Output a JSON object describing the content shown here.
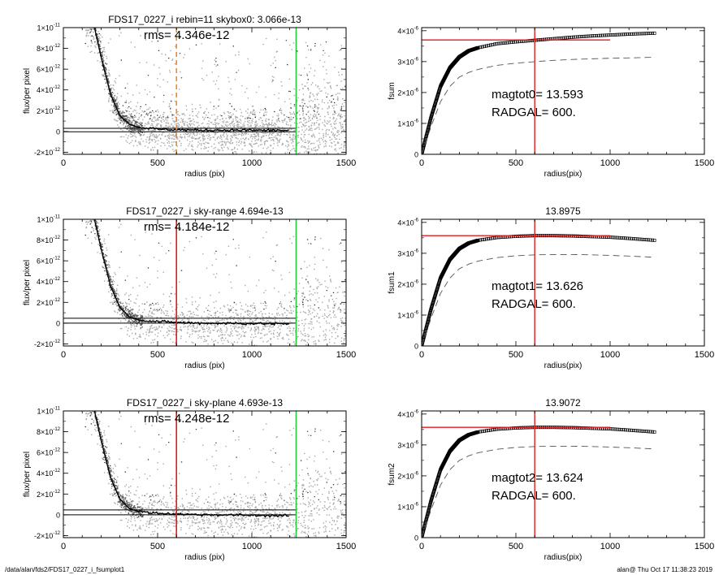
{
  "footer": {
    "left": "/data/alan/fds2/FDS17_0227_i_fsumplot1",
    "right": "alan@  Thu Oct 17 11:38:23 2019"
  },
  "colors": {
    "scatter_grey": "#a9a9a9",
    "red": "#e41a1c",
    "green": "#22c93a",
    "orange": "#f08a24"
  },
  "chart_data": [
    {
      "type": "scatter",
      "title": "FDS17_0227_i rebin=11    skybox0:  3.066e-13",
      "annotation": "rms= 4.346e-12",
      "xlabel": "radius (pix)",
      "ylabel": "flux/per pixel",
      "xlim": [
        0,
        1500
      ],
      "ylim": [
        -2.2e-12,
        1e-11
      ],
      "xticks": [
        "0",
        "500",
        "1000",
        "1500"
      ],
      "yticks": [
        {
          "value": -2e-12,
          "mant": "-2×10",
          "exp": "-12"
        },
        {
          "value": 0,
          "mant": "0",
          "exp": ""
        },
        {
          "value": 2e-12,
          "mant": "2×10",
          "exp": "-12"
        },
        {
          "value": 4e-12,
          "mant": "4×10",
          "exp": "-12"
        },
        {
          "value": 6e-12,
          "mant": "6×10",
          "exp": "-12"
        },
        {
          "value": 8e-12,
          "mant": "8×10",
          "exp": "-12"
        },
        {
          "value": 1e-11,
          "mant": "1×10",
          "exp": "-11"
        }
      ],
      "hlines": [
        3.066e-13,
        -2.5e-14
      ],
      "vlines": [
        {
          "x": 600,
          "color": "orange",
          "dashed": true
        },
        {
          "x": 1235,
          "color": "green",
          "dashed": false
        }
      ],
      "profile": [
        [
          165,
          1e-11
        ],
        [
          200,
          7.2e-12
        ],
        [
          250,
          3.6e-12
        ],
        [
          300,
          1.5e-12
        ],
        [
          350,
          7e-13
        ],
        [
          400,
          4e-13
        ],
        [
          500,
          2.2e-13
        ],
        [
          700,
          1.2e-13
        ],
        [
          900,
          1.3e-13
        ],
        [
          1200,
          1e-13
        ]
      ]
    },
    {
      "type": "line",
      "title": "",
      "annotation_lines": [
        "magtot0=  13.593",
        "RADGAL=    600."
      ],
      "xlabel": "radius(pix)",
      "ylabel": "fsum",
      "xlim": [
        0,
        1500
      ],
      "ylim": [
        0,
        4.1e-06
      ],
      "xticks": [
        "0",
        "500",
        "1000",
        "1500"
      ],
      "yticks": [
        {
          "value": 0,
          "mant": "0",
          "exp": ""
        },
        {
          "value": 1e-06,
          "mant": "1×10",
          "exp": "-6"
        },
        {
          "value": 2e-06,
          "mant": "2×10",
          "exp": "-6"
        },
        {
          "value": 3e-06,
          "mant": "3×10",
          "exp": "-6"
        },
        {
          "value": 4e-06,
          "mant": "4×10",
          "exp": "-6"
        }
      ],
      "series": [
        {
          "style": "open-squares",
          "x": [
            0,
            50,
            100,
            150,
            200,
            250,
            300,
            400,
            500,
            600,
            700,
            800,
            900,
            1000,
            1100,
            1235
          ],
          "y": [
            0,
            1.2e-06,
            2.2e-06,
            2.8e-06,
            3.15e-06,
            3.35e-06,
            3.45e-06,
            3.58e-06,
            3.64e-06,
            3.69e-06,
            3.74e-06,
            3.79e-06,
            3.83e-06,
            3.86e-06,
            3.89e-06,
            3.92e-06
          ]
        },
        {
          "style": "dashed",
          "x": [
            0,
            50,
            100,
            150,
            200,
            250,
            300,
            400,
            500,
            600,
            700,
            800,
            900,
            1000,
            1100,
            1235
          ],
          "y": [
            0,
            9e-07,
            1.7e-06,
            2.2e-06,
            2.5e-06,
            2.65e-06,
            2.75e-06,
            2.88e-06,
            2.95e-06,
            3e-06,
            3.04e-06,
            3.07e-06,
            3.09e-06,
            3.11e-06,
            3.12e-06,
            3.14e-06
          ]
        }
      ],
      "redline_h": {
        "y": 3.7e-06,
        "x": [
          0,
          1000
        ]
      },
      "redline_v": 600
    },
    {
      "type": "scatter",
      "title": "FDS17_0227_i sky-range  4.694e-13",
      "annotation": "rms= 4.184e-12",
      "xlabel": "radius (pix)",
      "ylabel": "flux/per pixel",
      "xlim": [
        0,
        1500
      ],
      "ylim": [
        -2.2e-12,
        1e-11
      ],
      "xticks": [
        "0",
        "500",
        "1000",
        "1500"
      ],
      "yticks": [
        {
          "value": -2e-12,
          "mant": "-2×10",
          "exp": "-12"
        },
        {
          "value": 0,
          "mant": "0",
          "exp": ""
        },
        {
          "value": 2e-12,
          "mant": "2×10",
          "exp": "-12"
        },
        {
          "value": 4e-12,
          "mant": "4×10",
          "exp": "-12"
        },
        {
          "value": 6e-12,
          "mant": "6×10",
          "exp": "-12"
        },
        {
          "value": 8e-12,
          "mant": "8×10",
          "exp": "-12"
        },
        {
          "value": 1e-11,
          "mant": "1×10",
          "exp": "-11"
        }
      ],
      "hlines": [
        4.694e-13,
        0
      ],
      "vlines": [
        {
          "x": 600,
          "color": "red",
          "dashed": false
        },
        {
          "x": 1235,
          "color": "green",
          "dashed": false
        }
      ],
      "profile": [
        [
          165,
          1e-11
        ],
        [
          200,
          7.2e-12
        ],
        [
          250,
          3.6e-12
        ],
        [
          300,
          1.5e-12
        ],
        [
          350,
          6e-13
        ],
        [
          400,
          3e-13
        ],
        [
          500,
          1.5e-13
        ],
        [
          700,
          0
        ],
        [
          900,
          -2e-14
        ],
        [
          1200,
          -8e-14
        ]
      ]
    },
    {
      "type": "line",
      "title": "13.8975",
      "annotation_lines": [
        "magtot1=  13.626",
        "RADGAL=    600."
      ],
      "xlabel": "radius(pix)",
      "ylabel": "fsum1",
      "xlim": [
        0,
        1500
      ],
      "ylim": [
        0,
        4.1e-06
      ],
      "xticks": [
        "0",
        "500",
        "1000",
        "1500"
      ],
      "yticks": [
        {
          "value": 0,
          "mant": "0",
          "exp": ""
        },
        {
          "value": 1e-06,
          "mant": "1×10",
          "exp": "-6"
        },
        {
          "value": 2e-06,
          "mant": "2×10",
          "exp": "-6"
        },
        {
          "value": 3e-06,
          "mant": "3×10",
          "exp": "-6"
        },
        {
          "value": 4e-06,
          "mant": "4×10",
          "exp": "-6"
        }
      ],
      "series": [
        {
          "style": "open-squares",
          "x": [
            0,
            50,
            100,
            150,
            200,
            250,
            300,
            400,
            500,
            600,
            700,
            800,
            900,
            1000,
            1100,
            1235
          ],
          "y": [
            0,
            1.2e-06,
            2.2e-06,
            2.8e-06,
            3.15e-06,
            3.33e-06,
            3.42e-06,
            3.51e-06,
            3.55e-06,
            3.57e-06,
            3.57e-06,
            3.56e-06,
            3.54e-06,
            3.52e-06,
            3.48e-06,
            3.42e-06
          ]
        },
        {
          "style": "dashed",
          "x": [
            0,
            50,
            100,
            150,
            200,
            250,
            300,
            400,
            500,
            600,
            700,
            800,
            900,
            1000,
            1100,
            1235
          ],
          "y": [
            0,
            9e-07,
            1.7e-06,
            2.2e-06,
            2.5e-06,
            2.65e-06,
            2.75e-06,
            2.86e-06,
            2.92e-06,
            2.95e-06,
            2.96e-06,
            2.96e-06,
            2.95e-06,
            2.93e-06,
            2.91e-06,
            2.87e-06
          ]
        }
      ],
      "redline_h": {
        "y": 3.57e-06,
        "x": [
          0,
          1000
        ]
      },
      "redline_v": 600
    },
    {
      "type": "scatter",
      "title": "FDS17_0227_i sky-plane  4.693e-13",
      "annotation": "rms= 4.248e-12",
      "xlabel": "radius (pix)",
      "ylabel": "flux/per pixel",
      "xlim": [
        0,
        1500
      ],
      "ylim": [
        -2.2e-12,
        1e-11
      ],
      "xticks": [
        "0",
        "500",
        "1000",
        "1500"
      ],
      "yticks": [
        {
          "value": -2e-12,
          "mant": "-2×10",
          "exp": "-12"
        },
        {
          "value": 0,
          "mant": "0",
          "exp": ""
        },
        {
          "value": 2e-12,
          "mant": "2×10",
          "exp": "-12"
        },
        {
          "value": 4e-12,
          "mant": "4×10",
          "exp": "-12"
        },
        {
          "value": 6e-12,
          "mant": "6×10",
          "exp": "-12"
        },
        {
          "value": 8e-12,
          "mant": "8×10",
          "exp": "-12"
        },
        {
          "value": 1e-11,
          "mant": "1×10",
          "exp": "-11"
        }
      ],
      "hlines": [
        4.693e-13,
        0
      ],
      "vlines": [
        {
          "x": 600,
          "color": "red",
          "dashed": false
        },
        {
          "x": 1235,
          "color": "green",
          "dashed": false
        }
      ],
      "profile": [
        [
          165,
          1e-11
        ],
        [
          200,
          7.2e-12
        ],
        [
          250,
          3.6e-12
        ],
        [
          300,
          1.5e-12
        ],
        [
          350,
          6e-13
        ],
        [
          400,
          3e-13
        ],
        [
          500,
          1.5e-13
        ],
        [
          700,
          2e-14
        ],
        [
          900,
          -2e-14
        ],
        [
          1200,
          -1e-13
        ]
      ]
    },
    {
      "type": "line",
      "title": "13.9072",
      "annotation_lines": [
        "magtot2=  13.624",
        "RADGAL=    600."
      ],
      "xlabel": "radius(pix)",
      "ylabel": "fsum2",
      "xlim": [
        0,
        1500
      ],
      "ylim": [
        0,
        4.1e-06
      ],
      "xticks": [
        "0",
        "500",
        "1000",
        "1500"
      ],
      "yticks": [
        {
          "value": 0,
          "mant": "0",
          "exp": ""
        },
        {
          "value": 1e-06,
          "mant": "1×10",
          "exp": "-6"
        },
        {
          "value": 2e-06,
          "mant": "2×10",
          "exp": "-6"
        },
        {
          "value": 3e-06,
          "mant": "3×10",
          "exp": "-6"
        },
        {
          "value": 4e-06,
          "mant": "4×10",
          "exp": "-6"
        }
      ],
      "series": [
        {
          "style": "open-squares",
          "x": [
            0,
            50,
            100,
            150,
            200,
            250,
            300,
            400,
            500,
            600,
            700,
            800,
            900,
            1000,
            1100,
            1235
          ],
          "y": [
            0,
            1.2e-06,
            2.2e-06,
            2.8e-06,
            3.15e-06,
            3.33e-06,
            3.42e-06,
            3.51e-06,
            3.55e-06,
            3.57e-06,
            3.57e-06,
            3.56e-06,
            3.54e-06,
            3.52e-06,
            3.48e-06,
            3.42e-06
          ]
        },
        {
          "style": "dashed",
          "x": [
            0,
            50,
            100,
            150,
            200,
            250,
            300,
            400,
            500,
            600,
            700,
            800,
            900,
            1000,
            1100,
            1235
          ],
          "y": [
            0,
            9e-07,
            1.7e-06,
            2.2e-06,
            2.5e-06,
            2.65e-06,
            2.75e-06,
            2.86e-06,
            2.92e-06,
            2.95e-06,
            2.96e-06,
            2.96e-06,
            2.95e-06,
            2.93e-06,
            2.91e-06,
            2.87e-06
          ]
        }
      ],
      "redline_h": {
        "y": 3.57e-06,
        "x": [
          0,
          1000
        ]
      },
      "redline_v": 600
    }
  ]
}
